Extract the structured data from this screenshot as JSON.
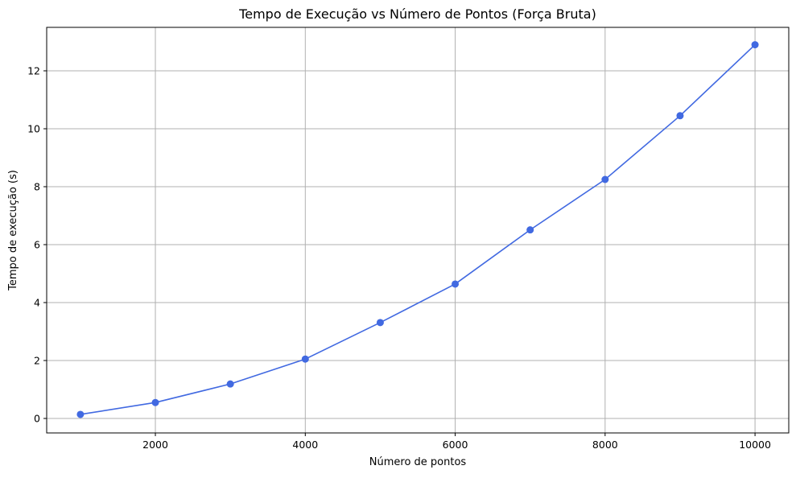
{
  "chart_data": {
    "type": "line",
    "title": "Tempo de Execução vs Número de Pontos (Força Bruta)",
    "xlabel": "Número de pontos",
    "ylabel": "Tempo de execução (s)",
    "xlim": [
      550,
      10450
    ],
    "ylim": [
      -0.5,
      13.5
    ],
    "xticks": [
      2000,
      4000,
      6000,
      8000,
      10000
    ],
    "xtick_labels": [
      "2000",
      "4000",
      "6000",
      "8000",
      "10000"
    ],
    "yticks": [
      0,
      2,
      4,
      6,
      8,
      10,
      12
    ],
    "ytick_labels": [
      "0",
      "2",
      "4",
      "6",
      "8",
      "10",
      "12"
    ],
    "grid": true,
    "legend": "none",
    "line_color": "#4169e1",
    "marker": "circle",
    "series": [
      {
        "x": [
          1000,
          2000,
          3000,
          4000,
          5000,
          6000,
          7000,
          8000,
          9000,
          10000
        ],
        "y": [
          0.14,
          0.55,
          1.19,
          2.05,
          3.31,
          4.64,
          6.51,
          8.25,
          10.45,
          12.9
        ]
      }
    ]
  }
}
